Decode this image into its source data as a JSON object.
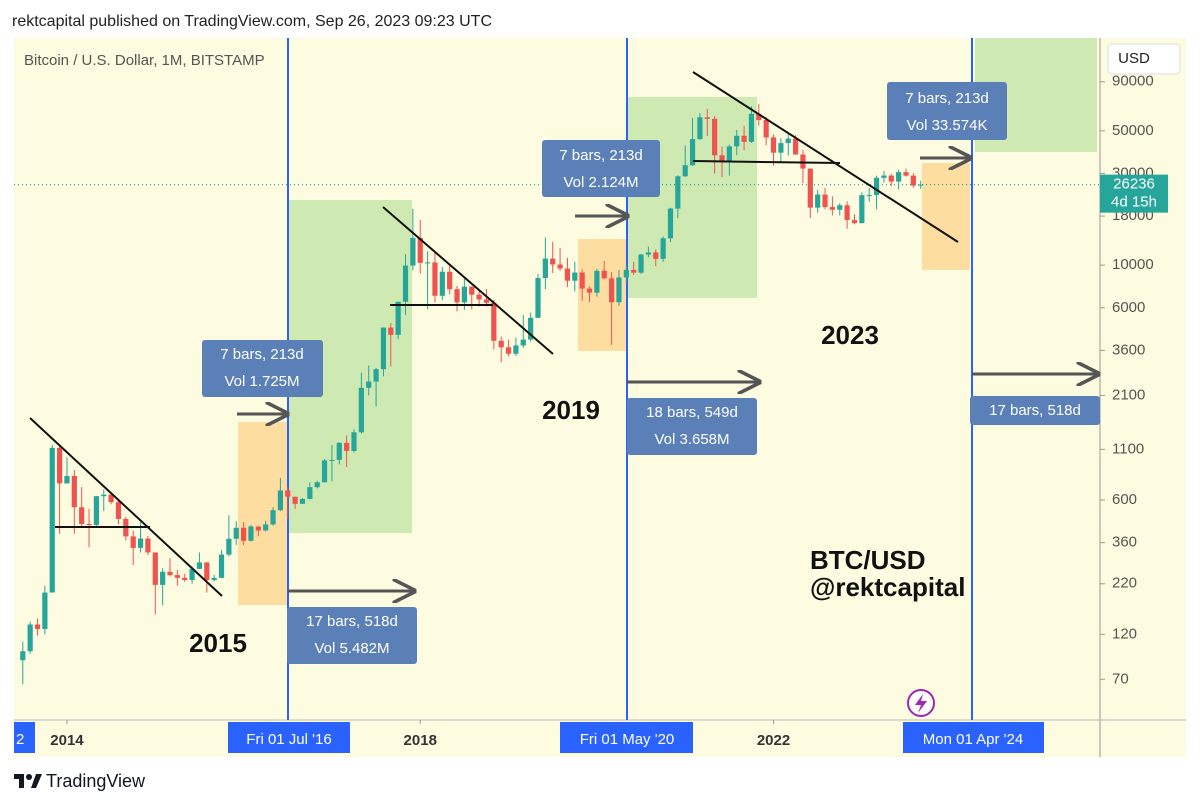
{
  "header": {
    "text": "rektcapital published on TradingView.com, Sep 26, 2023 09:23 UTC"
  },
  "footer": {
    "brand": "TradingView"
  },
  "chart_data": {
    "type": "candlestick",
    "title": "Bitcoin / U.S. Dollar, 1M, BITSTAMP",
    "currency": "USD",
    "log_scale": true,
    "up_color": "#26a69a",
    "down_color": "#ef5350",
    "ylim": [
      43,
      152000
    ],
    "yticks": [
      70,
      120,
      220,
      360,
      600,
      1100,
      2100,
      3600,
      6000,
      10000,
      18000,
      30000,
      50000,
      90000
    ],
    "xticks": [
      {
        "value": "2014-01",
        "label": "2014"
      },
      {
        "value": "2018-01",
        "label": "2018"
      },
      {
        "value": "2022-01",
        "label": "2022"
      }
    ],
    "last_price": 26236,
    "countdown": "4d 15h",
    "price_line_color": "#26a69a",
    "markers": [
      "2",
      "Fri 01 Jul '16",
      "Fri 01 May '20",
      "Mon 01 Apr '24"
    ],
    "annotations": {
      "boxes": [
        [
          "7 bars, 213d",
          "Vol 1.725M"
        ],
        [
          "17 bars, 518d",
          "Vol 5.482M"
        ],
        [
          "7 bars, 213d",
          "Vol 2.124M"
        ],
        [
          "18 bars, 549d",
          "Vol 3.658M"
        ],
        [
          "7 bars, 213d",
          "Vol 33.574K"
        ],
        [
          "17 bars, 518d"
        ]
      ],
      "texts": [
        "2015",
        "2019",
        "2023",
        "BTC/USD",
        "@rektcapital"
      ]
    },
    "x": [
      "2013-07",
      "2013-08",
      "2013-09",
      "2013-10",
      "2013-11",
      "2013-12",
      "2014-01",
      "2014-02",
      "2014-03",
      "2014-04",
      "2014-05",
      "2014-06",
      "2014-07",
      "2014-08",
      "2014-09",
      "2014-10",
      "2014-11",
      "2014-12",
      "2015-01",
      "2015-02",
      "2015-03",
      "2015-04",
      "2015-05",
      "2015-06",
      "2015-07",
      "2015-08",
      "2015-09",
      "2015-10",
      "2015-11",
      "2015-12",
      "2016-01",
      "2016-02",
      "2016-03",
      "2016-04",
      "2016-05",
      "2016-06",
      "2016-07",
      "2016-08",
      "2016-09",
      "2016-10",
      "2016-11",
      "2016-12",
      "2017-01",
      "2017-02",
      "2017-03",
      "2017-04",
      "2017-05",
      "2017-06",
      "2017-07",
      "2017-08",
      "2017-09",
      "2017-10",
      "2017-11",
      "2017-12",
      "2018-01",
      "2018-02",
      "2018-03",
      "2018-04",
      "2018-05",
      "2018-06",
      "2018-07",
      "2018-08",
      "2018-09",
      "2018-10",
      "2018-11",
      "2018-12",
      "2019-01",
      "2019-02",
      "2019-03",
      "2019-04",
      "2019-05",
      "2019-06",
      "2019-07",
      "2019-08",
      "2019-09",
      "2019-10",
      "2019-11",
      "2019-12",
      "2020-01",
      "2020-02",
      "2020-03",
      "2020-04",
      "2020-05",
      "2020-06",
      "2020-07",
      "2020-08",
      "2020-09",
      "2020-10",
      "2020-11",
      "2020-12",
      "2021-01",
      "2021-02",
      "2021-03",
      "2021-04",
      "2021-05",
      "2021-06",
      "2021-07",
      "2021-08",
      "2021-09",
      "2021-10",
      "2021-11",
      "2021-12",
      "2022-01",
      "2022-02",
      "2022-03",
      "2022-04",
      "2022-05",
      "2022-06",
      "2022-07",
      "2022-08",
      "2022-09",
      "2022-10",
      "2022-11",
      "2022-12",
      "2023-01",
      "2023-02",
      "2023-03",
      "2023-04",
      "2023-05",
      "2023-06",
      "2023-07",
      "2023-08",
      "2023-09"
    ],
    "open": [
      88,
      98,
      135,
      128,
      198,
      1120,
      732,
      800,
      550,
      450,
      445,
      628,
      640,
      585,
      478,
      388,
      338,
      378,
      320,
      217,
      254,
      244,
      236,
      230,
      263,
      284,
      230,
      236,
      312,
      377,
      430,
      368,
      437,
      416,
      448,
      531,
      673,
      624,
      573,
      608,
      700,
      742,
      964,
      970,
      1190,
      1080,
      1350,
      2300,
      2480,
      2875,
      4735,
      4340,
      6450,
      9950,
      13860,
      10280,
      10330,
      6930,
      9240,
      7500,
      6400,
      7730,
      7020,
      6630,
      6370,
      4040,
      3740,
      3460,
      3820,
      4100,
      5320,
      8570,
      10820,
      10080,
      9600,
      8300,
      9150,
      7550,
      7190,
      9350,
      8540,
      6410,
      8630,
      9450,
      9140,
      11350,
      11650,
      10780,
      13800,
      19700,
      28990,
      33110,
      45240,
      58800,
      57700,
      37300,
      35040,
      41490,
      47100,
      43820,
      61300,
      56900,
      46200,
      38480,
      43160,
      45530,
      37640,
      31790,
      19920,
      23300,
      20050,
      19420,
      20490,
      17160,
      16540,
      23130,
      23140,
      28470,
      29250,
      27210,
      30470,
      29230,
      25940
    ],
    "high": [
      110,
      140,
      145,
      215,
      1163,
      1150,
      1000,
      860,
      700,
      540,
      630,
      680,
      650,
      600,
      490,
      415,
      460,
      390,
      320,
      265,
      300,
      260,
      248,
      270,
      320,
      285,
      245,
      330,
      500,
      465,
      460,
      445,
      425,
      468,
      550,
      780,
      700,
      625,
      615,
      740,
      755,
      980,
      1160,
      1200,
      1300,
      1400,
      2760,
      3000,
      2920,
      4740,
      5000,
      6470,
      11400,
      19666,
      17200,
      11800,
      11700,
      9800,
      10000,
      7800,
      8500,
      7750,
      7400,
      7500,
      6600,
      4250,
      4100,
      4200,
      5500,
      5640,
      9000,
      13900,
      13200,
      12300,
      10900,
      10400,
      9500,
      7750,
      9580,
      10500,
      9200,
      9450,
      10100,
      10400,
      11450,
      12480,
      12060,
      14100,
      19900,
      29300,
      41950,
      58350,
      61800,
      64900,
      59600,
      41300,
      42400,
      50500,
      52900,
      67000,
      69000,
      59000,
      47900,
      45800,
      48200,
      47450,
      39800,
      31900,
      24700,
      25200,
      22800,
      21000,
      21480,
      18400,
      23900,
      25250,
      29200,
      30900,
      29800,
      31400,
      31800,
      30100,
      27500
    ],
    "low": [
      66,
      95,
      118,
      120,
      200,
      400,
      730,
      400,
      430,
      340,
      430,
      525,
      570,
      450,
      370,
      275,
      320,
      310,
      152,
      170,
      240,
      215,
      225,
      220,
      262,
      198,
      226,
      235,
      305,
      350,
      350,
      365,
      390,
      412,
      440,
      525,
      480,
      540,
      575,
      605,
      690,
      740,
      750,
      920,
      890,
      1060,
      1330,
      2100,
      1840,
      2640,
      2970,
      4120,
      5500,
      9400,
      9040,
      5900,
      6400,
      6570,
      7050,
      5750,
      5850,
      5900,
      6100,
      6100,
      3650,
      3120,
      3350,
      3370,
      3720,
      4000,
      5300,
      7500,
      9100,
      9330,
      7710,
      7300,
      6520,
      6420,
      6850,
      8460,
      3850,
      6150,
      8100,
      8900,
      9000,
      10990,
      9880,
      10400,
      13200,
      17550,
      28800,
      32800,
      44950,
      47000,
      30000,
      28800,
      29200,
      37300,
      39600,
      43280,
      53300,
      42000,
      32900,
      34300,
      37150,
      37600,
      26700,
      17600,
      18750,
      19550,
      18150,
      18150,
      15476,
      16300,
      16500,
      21350,
      19550,
      26900,
      25800,
      24750,
      28900,
      25300,
      24900
    ],
    "close": [
      98,
      135,
      128,
      198,
      1120,
      732,
      800,
      550,
      450,
      445,
      628,
      640,
      585,
      478,
      388,
      338,
      378,
      320,
      217,
      254,
      244,
      236,
      230,
      263,
      284,
      230,
      236,
      312,
      377,
      430,
      368,
      437,
      416,
      448,
      531,
      673,
      624,
      573,
      608,
      700,
      742,
      964,
      970,
      1190,
      1080,
      1350,
      2300,
      2480,
      2875,
      4735,
      4340,
      6450,
      9950,
      13860,
      10280,
      10330,
      6930,
      9240,
      7500,
      6400,
      7730,
      7020,
      6630,
      6370,
      4040,
      3740,
      3460,
      3820,
      4100,
      5320,
      8570,
      10820,
      10080,
      9600,
      8300,
      9150,
      7550,
      7190,
      9350,
      8540,
      6410,
      8630,
      9450,
      9140,
      11350,
      11650,
      10780,
      13800,
      19700,
      28990,
      33110,
      45240,
      58800,
      57700,
      37300,
      35040,
      41490,
      47100,
      43820,
      61300,
      56900,
      46200,
      38480,
      43160,
      45530,
      37640,
      31790,
      19920,
      23300,
      20050,
      19420,
      20490,
      17160,
      16540,
      23130,
      23140,
      28470,
      29250,
      27210,
      30470,
      29230,
      25940,
      26236
    ]
  }
}
